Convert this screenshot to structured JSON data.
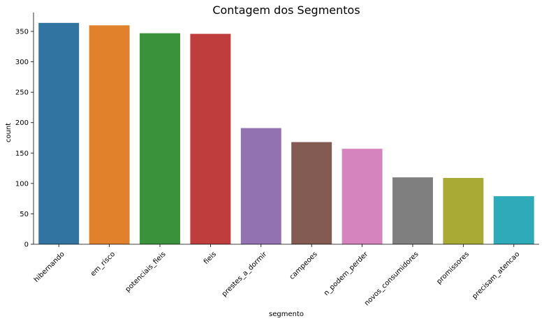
{
  "chart_data": {
    "type": "bar",
    "title": "Contagem dos Segmentos",
    "xlabel": "segmento",
    "ylabel": "count",
    "categories": [
      "hibernando",
      "em_risco",
      "potenciais_fieis",
      "fieis",
      "prestes_a_dormir",
      "campeoes",
      "n_podem_perder",
      "novos_consumidores",
      "promissores",
      "precisam_atencao"
    ],
    "values": [
      364,
      360,
      347,
      346,
      191,
      168,
      157,
      110,
      109,
      79
    ],
    "colors": [
      "#3274a1",
      "#e1812c",
      "#3a923a",
      "#c03d3e",
      "#9372b2",
      "#845b53",
      "#d684bd",
      "#7f7f7f",
      "#a9aa35",
      "#2eaab8"
    ],
    "ylim": [
      0,
      381
    ],
    "yticks": [
      0,
      50,
      100,
      150,
      200,
      250,
      300,
      350
    ],
    "grid": false,
    "legend": "none"
  }
}
